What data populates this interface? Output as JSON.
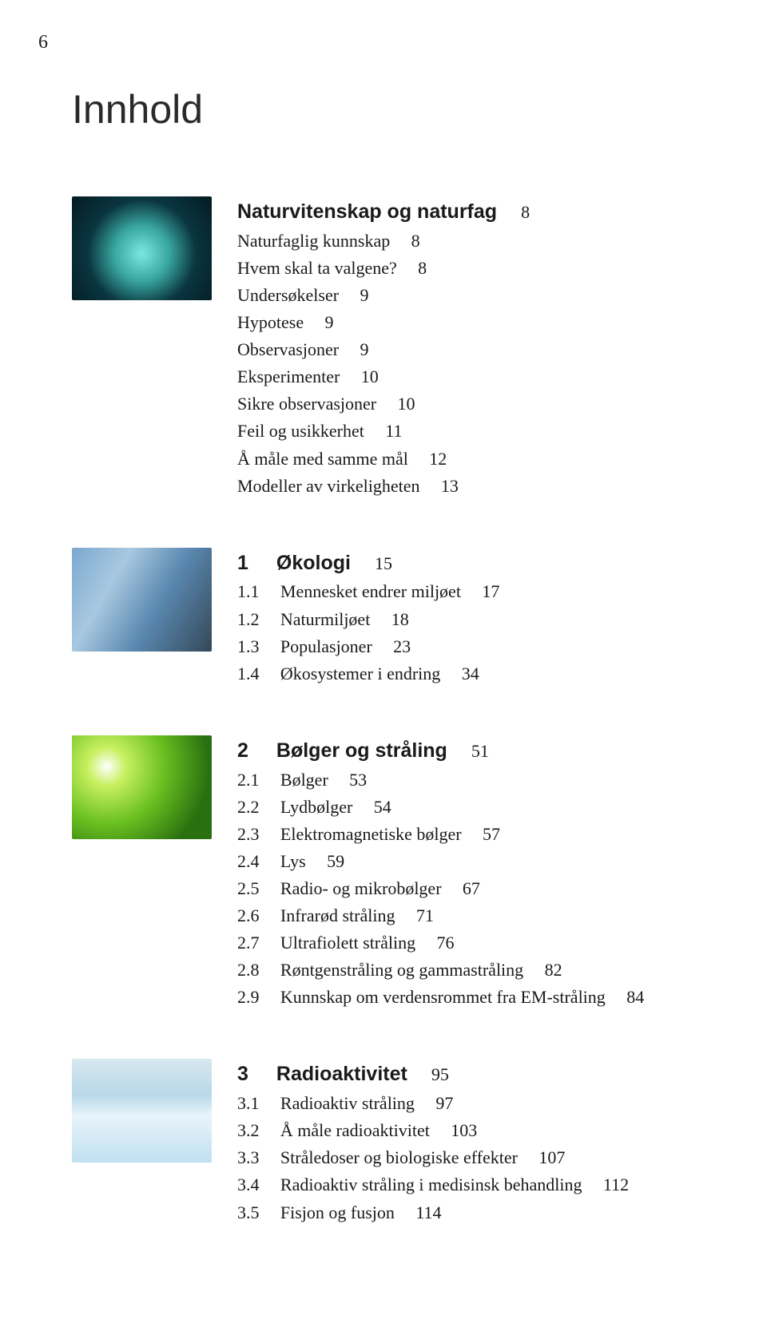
{
  "page_number": "6",
  "title": "Innhold",
  "sections": [
    {
      "thumb_class": "thumb-0",
      "heading": {
        "label": "Naturvitenskap og naturfag",
        "page": "8"
      },
      "rows": [
        {
          "num": "",
          "label": "Naturfaglig kunnskap",
          "page": "8"
        },
        {
          "num": "",
          "label": "Hvem skal ta valgene?",
          "page": "8"
        },
        {
          "num": "",
          "label": "Undersøkelser",
          "page": "9"
        },
        {
          "num": "",
          "label": "Hypotese",
          "page": "9"
        },
        {
          "num": "",
          "label": "Observasjoner",
          "page": "9"
        },
        {
          "num": "",
          "label": "Eksperimenter",
          "page": "10"
        },
        {
          "num": "",
          "label": "Sikre observasjoner",
          "page": "10"
        },
        {
          "num": "",
          "label": "Feil og usikkerhet",
          "page": "11"
        },
        {
          "num": "",
          "label": "Å måle med samme mål",
          "page": "12"
        },
        {
          "num": "",
          "label": "Modeller av virkeligheten",
          "page": "13"
        }
      ]
    },
    {
      "thumb_class": "thumb-1",
      "heading": {
        "num": "1",
        "label": "Økologi",
        "page": "15"
      },
      "rows": [
        {
          "num": "1.1",
          "label": "Mennesket endrer miljøet",
          "page": "17"
        },
        {
          "num": "1.2",
          "label": "Naturmiljøet",
          "page": "18"
        },
        {
          "num": "1.3",
          "label": "Populasjoner",
          "page": "23"
        },
        {
          "num": "1.4",
          "label": "Økosystemer i endring",
          "page": "34"
        }
      ]
    },
    {
      "thumb_class": "thumb-2",
      "heading": {
        "num": "2",
        "label": "Bølger og stråling",
        "page": "51"
      },
      "rows": [
        {
          "num": "2.1",
          "label": "Bølger",
          "page": "53"
        },
        {
          "num": "2.2",
          "label": "Lydbølger",
          "page": "54"
        },
        {
          "num": "2.3",
          "label": "Elektromagnetiske bølger",
          "page": "57"
        },
        {
          "num": "2.4",
          "label": "Lys",
          "page": "59"
        },
        {
          "num": "2.5",
          "label": "Radio- og mikrobølger",
          "page": "67"
        },
        {
          "num": "2.6",
          "label": "Infrarød stråling",
          "page": "71"
        },
        {
          "num": "2.7",
          "label": "Ultrafiolett stråling",
          "page": "76"
        },
        {
          "num": "2.8",
          "label": "Røntgenstråling og gammastråling",
          "page": "82"
        },
        {
          "num": "2.9",
          "label": "Kunnskap om verdensrommet fra EM-stråling",
          "page": "84"
        }
      ]
    },
    {
      "thumb_class": "thumb-3",
      "heading": {
        "num": "3",
        "label": "Radioaktivitet",
        "page": "95"
      },
      "rows": [
        {
          "num": "3.1",
          "label": "Radioaktiv stråling",
          "page": "97"
        },
        {
          "num": "3.2",
          "label": "Å måle radioaktivitet",
          "page": "103"
        },
        {
          "num": "3.3",
          "label": "Stråledoser og biologiske effekter",
          "page": "107"
        },
        {
          "num": "3.4",
          "label": "Radioaktiv stråling i medisinsk behandling",
          "page": "112"
        },
        {
          "num": "3.5",
          "label": "Fisjon og fusjon",
          "page": "114"
        }
      ]
    }
  ]
}
